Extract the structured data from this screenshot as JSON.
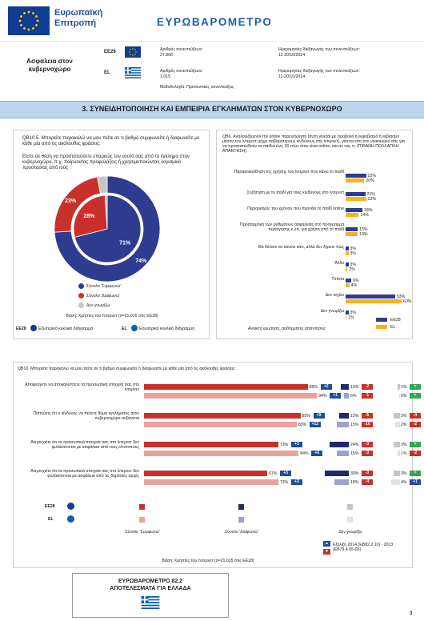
{
  "header": {
    "org_line1": "Ευρωπαϊκή",
    "org_line2": "Επιτροπή",
    "title": "ΕΥΡΩΒΑΡΟΜΕΤΡΟ"
  },
  "survey": {
    "topic_line1": "Ασφάλεια στον",
    "topic_line2": "κυβερνοχώρο",
    "rows": [
      {
        "label": "EE28",
        "interviews_label": "Αριθμός συνεντεύξεων:",
        "interviews": "27.868",
        "dates_label": "Ημερομηνίες διεξαγωγής των συνεντεύξεων:",
        "dates": "11-20/10/2014"
      },
      {
        "label": "EL",
        "interviews_label": "Αριθμός συνεντεύξεων:",
        "interviews": "1.015",
        "dates_label": "Ημερομηνίες διεξαγωγής των συνεντεύξεων:",
        "dates": "11-20/10/2014"
      }
    ],
    "method": "Μεθοδολογία: Προσωπικές συνεντεύξεις"
  },
  "section_title": "3. ΣΥΝΕΙΔΗΤΟΠΟΙΗΣΗ ΚΑΙ ΕΜΠΕΙΡΙΑ ΕΓΚΛΗΜΑΤΩΝ ΣΤΟΝ ΚΥΒΕΡΝΟΧΩΡΟ",
  "qb105": {
    "question": "QB10.5. Μπορείτε παρακαλώ να μου πείτε σε τι βαθμό συμφωνείτε ή διαφωνείτε με κάθε μία από τις ακόλουθες φράσεις:",
    "statement": "Είστε σε θέση να προστατεύσετε επαρκώς τον εαυτό σας από το έγκλημα στον κυβερνοχώρο, π.χ. παίρνοντας προφυλάξεις ή χρησιμοποιώντας λογισμικό προστασίας από ιούς",
    "legend": [
      "Σύνολο 'Συμφωνώ'",
      "Σύνολο 'Διαφωνώ'",
      "Δεν γνωρίζω"
    ],
    "base": "Βάση: Χρήστες του Ίντερνετ (n=21.015 στις ΕΕ28)",
    "outer_label": "EE28",
    "outer_note": "Εξωτερικό κυκλικό διάγραμμα",
    "inner_label": "EL",
    "inner_note": "Εσωτερικό κυκλικό διάγραμμα",
    "colors": {
      "agree": "#2d3c8f",
      "disagree": "#c9302c",
      "dk": "#c6c6c6"
    }
  },
  "qb6": {
    "question": "QB6. Αναλογιζόμενοι την online παρενόχληση (αυτή γίνεται με προβολή ή εκφοβισμό ή εκβιασμό μέσου του ίντερνετ μέχρι σοβαρότερους κινδύνους στο ίντερνετ), γίνεται κάτι στο νοικοκυριό σας για να προστατευθούν τα παιδιά έως 16 ετών όταν είναι online, και αν ναι, τι; (ΠΙΘΑΝΗ ΠΟΛΛΑΠΛΗ ΑΠΑΝΤΗΣΗ)",
    "footnote": "Ανοικτή ερώτηση, αυθόρμητες απαντήσεις",
    "legend": [
      "EE28",
      "EL"
    ]
  },
  "qb10": {
    "question": "QB10. Μπορείτε παρακαλώ να μου πείτε σε τι βαθμό συμφωνείτε ή διαφωνείτε με κάθε μία από τις ακόλουθες φράσεις:",
    "legend_agree": "Σύνολο 'Συμφωνώ'",
    "legend_disagree": "Σύνολο 'Διαφωνώ'",
    "legend_dk": "Δεν γνωρίζω",
    "legend_ee": "EE28",
    "legend_el": "EL",
    "evolution": "Εξέλιξη 2014 (EB82.2 10) - 2013 (EB79.4 05-06)",
    "base": "Βάση: Χρήστες του Ίντερνετ (n=21.015 στις ΕΕ28)"
  },
  "footer": {
    "line1": "ΕΥΡΩΒΑΡΟΜΕΤΡΟ 82.2",
    "line2": "ΑΠΟΤΕΛΕΣΜΑΤΑ ΓΙΑ ΕΛΛΑΔΑ"
  },
  "page_number": "3",
  "chart_data": [
    {
      "type": "pie",
      "title": "QB10.5",
      "series": [
        {
          "name": "EE28",
          "labels": [
            "Σύνολο 'Συμφωνώ'",
            "Σύνολο 'Διαφωνώ'",
            "Δεν γνωρίζω"
          ],
          "values": [
            74,
            23,
            3
          ]
        },
        {
          "name": "EL",
          "labels": [
            "Σύνολο 'Συμφωνώ'",
            "Σύνολο 'Διαφωνώ'",
            "Δεν γνωρίζω"
          ],
          "values": [
            71,
            28,
            1
          ]
        }
      ]
    },
    {
      "type": "bar",
      "title": "QB6",
      "categories": [
        "Παρακολούθηση της χρήσης του ίντερνετ που κάνει το παιδί",
        "Συζήτηση με το παιδί για τους κινδύνους στο ίντερνετ",
        "Περιορισμός του χρόνου που περνάει το παιδί online",
        "Προσαρμογή των ρυθμίσεων ασφαλείας στο πρόγραμμα περιήγησης κ.λπ. για χρήση από το παιδί",
        "Θα θέλατε να κάνετε κάτι, αλλά δεν ξέρετε πώς",
        "Άλλο",
        "Τίποτα",
        "Δεν ισχύει",
        "Δεν γνωρίζω"
      ],
      "series": [
        {
          "name": "EE28",
          "values": [
            22,
            21,
            18,
            13,
            3,
            3,
            6,
            53,
            3
          ]
        },
        {
          "name": "EL",
          "values": [
            20,
            22,
            14,
            13,
            3,
            2,
            4,
            60,
            1
          ]
        }
      ],
      "labels": {
        "EE28": [
          "22%",
          "21%",
          "18%",
          "13%",
          "3%",
          "3%",
          "6%",
          "53%",
          "3%"
        ],
        "EL": [
          "20%",
          "22%",
          "14%",
          "13%",
          "3%",
          "2%",
          "4%",
          "60%",
          "1%"
        ]
      }
    },
    {
      "type": "bar",
      "title": "QB10",
      "categories": [
        "Αποφεύγετε να αποκαλύπτετε τα προσωπικά στοιχεία σας στο ίντερνετ",
        "Πιστεύετε ότι ο κίνδυνος να πέσετε θύμα εγκλήματος στον κυβερνοχώρο αυξάνεται",
        "Ανησυχείτε ότι τα προσωπικά στοιχεία σας στο ίντερνετ δεν φυλάσσονται με ασφάλεια από τους ιστότοπους",
        "Ανησυχείτε ότι τα προσωπικά στοιχεία σας στο ίντερνετ δεν φυλάσσονται με ασφάλεια από τις δημόσιες αρχές"
      ],
      "series": [
        {
          "name": "EE28 Σύνολο 'Συμφωνώ'",
          "values": [
            89,
            85,
            73,
            67
          ]
        },
        {
          "name": "EE28 Σύνολο 'Διαφωνώ'",
          "values": [
            10,
            12,
            24,
            30
          ]
        },
        {
          "name": "EE28 Δεν γνωρίζω",
          "values": [
            1,
            3,
            3,
            3
          ]
        },
        {
          "name": "EL Σύνολο 'Συμφωνώ'",
          "values": [
            94,
            83,
            84,
            73
          ]
        },
        {
          "name": "EL Σύνολο 'Διαφωνώ'",
          "values": [
            6,
            15,
            15,
            18
          ]
        },
        {
          "name": "EL Δεν γνωρίζω",
          "values": [
            0,
            2,
            1,
            4
          ]
        }
      ],
      "labels": {
        "ee_agree": [
          "89%",
          "85%",
          "73%",
          "67%"
        ],
        "ee_disagree": [
          "10%",
          "12%",
          "24%",
          "30%"
        ],
        "ee_dk": [
          "1%",
          "3%",
          "3%",
          "3%"
        ],
        "el_agree": [
          "94%",
          "83%",
          "84%",
          "73%"
        ],
        "el_disagree": [
          "6%",
          "15%",
          "15%",
          "18%"
        ],
        "el_dk": [
          "0%",
          "2%",
          "1%",
          "4%"
        ]
      },
      "changes": {
        "ee_agree": [
          "+2",
          "+9",
          "+3",
          "+3"
        ],
        "ee_disagree": [
          "-2",
          "-5",
          "-3",
          "-3"
        ],
        "ee_dk": [
          "=",
          "-4",
          "=",
          "="
        ],
        "el_agree": [
          "+1",
          "+12",
          "+5",
          "+3"
        ],
        "el_disagree": [
          "-1",
          "-10",
          "-3",
          "-4"
        ],
        "el_dk": [
          "=",
          "-2",
          "-2",
          "+1"
        ]
      }
    }
  ]
}
